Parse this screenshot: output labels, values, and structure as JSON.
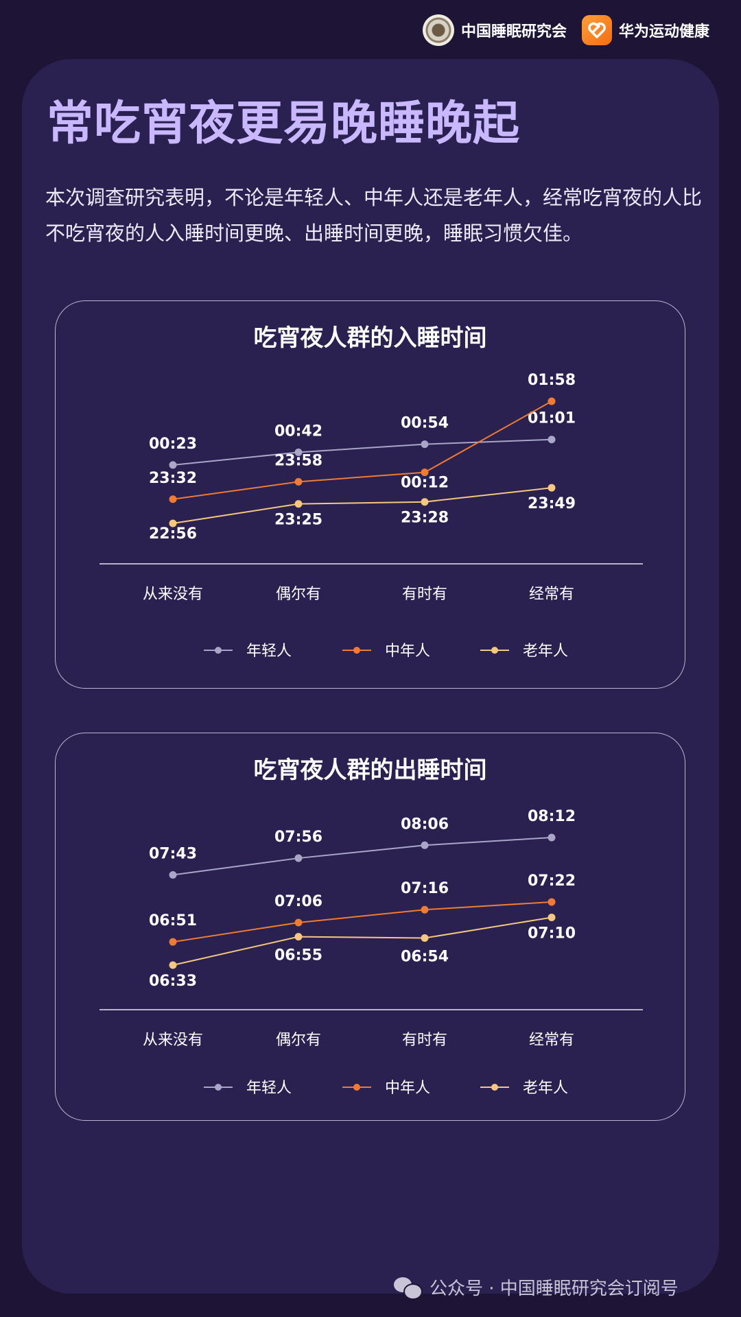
{
  "header": {
    "org1": "中国睡眠研究会",
    "org2": "华为运动健康"
  },
  "title": "常吃宵夜更易晚睡晚起",
  "intro": "本次调查研究表明，不论是年轻人、中年人还是老年人，经常吃宵夜的人比不吃宵夜的人入睡时间更晚、出睡时间更晚，睡眠习惯欠佳。",
  "footer": {
    "text": "公众号 · 中国睡眠研究会订阅号"
  },
  "colors": {
    "young": "#aaa6c8",
    "middle": "#f07b32",
    "old": "#f6c77e",
    "axis": "#e8e4f2"
  },
  "chart_data": [
    {
      "type": "line",
      "title": "吃宵夜人群的入睡时间",
      "categories": [
        "从来没有",
        "偶尔有",
        "有时有",
        "经常有"
      ],
      "series": [
        {
          "name": "年轻人",
          "values": [
            "00:23",
            "00:42",
            "00:54",
            "01:01"
          ]
        },
        {
          "name": "中年人",
          "values": [
            "23:32",
            "23:58",
            "00:12",
            "01:58"
          ]
        },
        {
          "name": "老年人",
          "values": [
            "22:56",
            "23:25",
            "23:28",
            "23:49"
          ]
        }
      ],
      "legend": "bottom",
      "grid": false
    },
    {
      "type": "line",
      "title": "吃宵夜人群的出睡时间",
      "categories": [
        "从来没有",
        "偶尔有",
        "有时有",
        "经常有"
      ],
      "series": [
        {
          "name": "年轻人",
          "values": [
            "07:43",
            "07:56",
            "08:06",
            "08:12"
          ]
        },
        {
          "name": "中年人",
          "values": [
            "06:51",
            "07:06",
            "07:16",
            "07:22"
          ]
        },
        {
          "name": "老年人",
          "values": [
            "06:33",
            "06:55",
            "06:54",
            "07:10"
          ]
        }
      ],
      "legend": "bottom",
      "grid": false
    }
  ]
}
